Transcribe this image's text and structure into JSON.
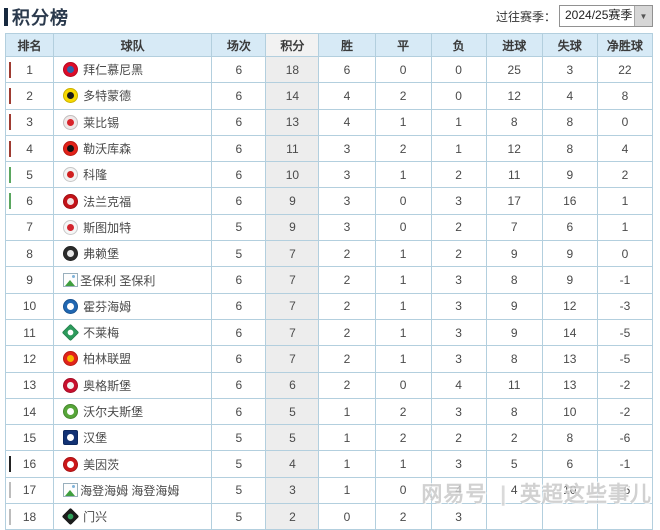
{
  "page_title": "积分榜",
  "season_selector": {
    "label": "过往赛季：",
    "value": "2024/25赛季",
    "arrow_icon": "▼"
  },
  "watermark": {
    "brand": "网易号",
    "divider": "|",
    "account": "英超这些事儿"
  },
  "legend_colors": {
    "champions_league": "#9e3b31",
    "europa": "#5aa65f",
    "relegation_playoff": "#222222",
    "relegation": "#bcbcbc",
    "header_bg": "#d7eaf6",
    "points_col_bg": "#ededed",
    "border": "#b3cfde"
  },
  "table": {
    "headers": [
      "排名",
      "球队",
      "场次",
      "积分",
      "胜",
      "平",
      "负",
      "进球",
      "失球",
      "净胜球"
    ],
    "rows": [
      {
        "rank": "1",
        "team": "拜仁慕尼黑",
        "marker": "#9e3b31",
        "broken": false,
        "alt": "",
        "logo": {
          "shape": "circle",
          "c1": "#dd0c29",
          "c2": "#2b65ad"
        },
        "played": "6",
        "points": "18",
        "win": "6",
        "draw": "0",
        "loss": "0",
        "gf": "25",
        "ga": "3",
        "gd": "22"
      },
      {
        "rank": "2",
        "team": "多特蒙德",
        "marker": "#9e3b31",
        "broken": false,
        "alt": "",
        "logo": {
          "shape": "circle",
          "c1": "#f7d800",
          "c2": "#1a1a1a"
        },
        "played": "6",
        "points": "14",
        "win": "4",
        "draw": "2",
        "loss": "0",
        "gf": "12",
        "ga": "4",
        "gd": "8"
      },
      {
        "rank": "3",
        "team": "莱比锡",
        "marker": "#9e3b31",
        "broken": false,
        "alt": "",
        "logo": {
          "shape": "circle",
          "c1": "#efe8e8",
          "c2": "#d8232a"
        },
        "played": "6",
        "points": "13",
        "win": "4",
        "draw": "1",
        "loss": "1",
        "gf": "8",
        "ga": "8",
        "gd": "0"
      },
      {
        "rank": "4",
        "team": "勒沃库森",
        "marker": "#9e3b31",
        "broken": false,
        "alt": "",
        "logo": {
          "shape": "circle",
          "c1": "#e32219",
          "c2": "#111111"
        },
        "played": "6",
        "points": "11",
        "win": "3",
        "draw": "2",
        "loss": "1",
        "gf": "12",
        "ga": "8",
        "gd": "4"
      },
      {
        "rank": "5",
        "team": "科隆",
        "marker": "#5aa65f",
        "broken": false,
        "alt": "",
        "logo": {
          "shape": "circle",
          "c1": "#f3f3f3",
          "c2": "#d02020"
        },
        "played": "6",
        "points": "10",
        "win": "3",
        "draw": "1",
        "loss": "2",
        "gf": "11",
        "ga": "9",
        "gd": "2"
      },
      {
        "rank": "6",
        "team": "法兰克福",
        "marker": "#5aa65f",
        "broken": false,
        "alt": "",
        "logo": {
          "shape": "circle",
          "c1": "#c41218",
          "c2": "#f0e2e2"
        },
        "played": "6",
        "points": "9",
        "win": "3",
        "draw": "0",
        "loss": "3",
        "gf": "17",
        "ga": "16",
        "gd": "1"
      },
      {
        "rank": "7",
        "team": "斯图加特",
        "marker": null,
        "broken": false,
        "alt": "",
        "logo": {
          "shape": "circle",
          "c1": "#f6f6f6",
          "c2": "#d3252e"
        },
        "played": "5",
        "points": "9",
        "win": "3",
        "draw": "0",
        "loss": "2",
        "gf": "7",
        "ga": "6",
        "gd": "1"
      },
      {
        "rank": "8",
        "team": "弗赖堡",
        "marker": null,
        "broken": false,
        "alt": "",
        "logo": {
          "shape": "circle",
          "c1": "#2b2b2b",
          "c2": "#e8e8e8"
        },
        "played": "5",
        "points": "7",
        "win": "2",
        "draw": "1",
        "loss": "2",
        "gf": "9",
        "ga": "9",
        "gd": "0"
      },
      {
        "rank": "9",
        "team": "圣保利",
        "marker": null,
        "broken": true,
        "alt": "圣保利",
        "logo": null,
        "played": "6",
        "points": "7",
        "win": "2",
        "draw": "1",
        "loss": "3",
        "gf": "8",
        "ga": "9",
        "gd": "-1"
      },
      {
        "rank": "10",
        "team": "霍芬海姆",
        "marker": null,
        "broken": false,
        "alt": "",
        "logo": {
          "shape": "circle",
          "c1": "#2067b2",
          "c2": "#ffffff"
        },
        "played": "6",
        "points": "7",
        "win": "2",
        "draw": "1",
        "loss": "3",
        "gf": "9",
        "ga": "12",
        "gd": "-3"
      },
      {
        "rank": "11",
        "team": "不莱梅",
        "marker": null,
        "broken": false,
        "alt": "",
        "logo": {
          "shape": "diamond",
          "c1": "#2c9a5b",
          "c2": "#ffffff"
        },
        "played": "6",
        "points": "7",
        "win": "2",
        "draw": "1",
        "loss": "3",
        "gf": "9",
        "ga": "14",
        "gd": "-5"
      },
      {
        "rank": "12",
        "team": "柏林联盟",
        "marker": null,
        "broken": false,
        "alt": "",
        "logo": {
          "shape": "circle",
          "c1": "#e2231a",
          "c2": "#f6b500"
        },
        "played": "6",
        "points": "7",
        "win": "2",
        "draw": "1",
        "loss": "3",
        "gf": "8",
        "ga": "13",
        "gd": "-5"
      },
      {
        "rank": "13",
        "team": "奥格斯堡",
        "marker": null,
        "broken": false,
        "alt": "",
        "logo": {
          "shape": "circle",
          "c1": "#c8102e",
          "c2": "#f2f2f2"
        },
        "played": "6",
        "points": "6",
        "win": "2",
        "draw": "0",
        "loss": "4",
        "gf": "11",
        "ga": "13",
        "gd": "-2"
      },
      {
        "rank": "14",
        "team": "沃尔夫斯堡",
        "marker": null,
        "broken": false,
        "alt": "",
        "logo": {
          "shape": "circle",
          "c1": "#57a639",
          "c2": "#ffffff"
        },
        "played": "6",
        "points": "5",
        "win": "1",
        "draw": "2",
        "loss": "3",
        "gf": "8",
        "ga": "10",
        "gd": "-2"
      },
      {
        "rank": "15",
        "team": "汉堡",
        "marker": null,
        "broken": false,
        "alt": "",
        "logo": {
          "shape": "square",
          "c1": "#123274",
          "c2": "#ffffff"
        },
        "played": "5",
        "points": "5",
        "win": "1",
        "draw": "2",
        "loss": "2",
        "gf": "2",
        "ga": "8",
        "gd": "-6"
      },
      {
        "rank": "16",
        "team": "美因茨",
        "marker": "#222222",
        "broken": false,
        "alt": "",
        "logo": {
          "shape": "circle",
          "c1": "#cc1719",
          "c2": "#ffffff"
        },
        "played": "5",
        "points": "4",
        "win": "1",
        "draw": "1",
        "loss": "3",
        "gf": "5",
        "ga": "6",
        "gd": "-1"
      },
      {
        "rank": "17",
        "team": "海登海姆",
        "marker": "#bcbcbc",
        "broken": true,
        "alt": "海登海姆",
        "logo": null,
        "played": "5",
        "points": "3",
        "win": "1",
        "draw": "0",
        "loss": "4",
        "gf": "4",
        "ga": "10",
        "gd": "-6"
      },
      {
        "rank": "18",
        "team": "门兴",
        "marker": "#bcbcbc",
        "broken": false,
        "alt": "",
        "logo": {
          "shape": "diamond",
          "c1": "#1c1c1c",
          "c2": "#2fa05a"
        },
        "played": "5",
        "points": "2",
        "win": "0",
        "draw": "2",
        "loss": "3",
        "gf": "",
        "ga": "",
        "gd": ""
      }
    ]
  }
}
